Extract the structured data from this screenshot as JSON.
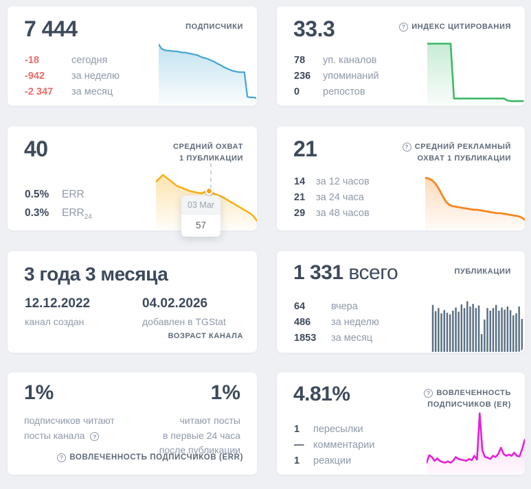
{
  "colors": {
    "negative": "#ee6a6a",
    "text_dark": "#3d4a5b",
    "label_gray": "#8e99a8"
  },
  "cards": {
    "subscribers": {
      "title": "ПОДПИСЧИКИ",
      "value": "7 444",
      "stats": [
        {
          "value": "-18",
          "label": "сегодня"
        },
        {
          "value": "-942",
          "label": "за неделю"
        },
        {
          "value": "-2 347",
          "label": "за месяц"
        }
      ]
    },
    "citation": {
      "title": "ИНДЕКС ЦИТИРОВАНИЯ",
      "value": "33.3",
      "stats": [
        {
          "value": "78",
          "label": "уп. каналов"
        },
        {
          "value": "236",
          "label": "упоминаний"
        },
        {
          "value": "0",
          "label": "репостов"
        }
      ]
    },
    "avg_reach": {
      "title_line1": "СРЕДНИЙ ОХВАТ",
      "title_line2": "1 ПУБЛИКАЦИИ",
      "value": "40",
      "stats": [
        {
          "value": "0.5%",
          "label": "ERR",
          "label_sub": ""
        },
        {
          "value": "0.3%",
          "label": "ERR",
          "label_sub": "24"
        }
      ],
      "tooltip": {
        "date": "03 Mar",
        "value": "57"
      }
    },
    "ad_reach": {
      "title_line1": "СРЕДНИЙ РЕКЛАМНЫЙ",
      "title_line2": "ОХВАТ 1 ПУБЛИКАЦИИ",
      "value": "21",
      "stats": [
        {
          "value": "14",
          "label": "за 12 часов"
        },
        {
          "value": "21",
          "label": "за 24 часа"
        },
        {
          "value": "29",
          "label": "за 48 часов"
        }
      ]
    },
    "age": {
      "value": "3 года 3 месяца",
      "created_date": "12.12.2022",
      "created_label": "канал создан",
      "added_date": "04.02.2026",
      "added_label": "добавлен в TGStat",
      "footer": "ВОЗРАСТ КАНАЛА"
    },
    "publications": {
      "title": "ПУБЛИКАЦИИ",
      "value": "1 331",
      "value_suffix": " всего",
      "stats": [
        {
          "value": "64",
          "label": "вчера"
        },
        {
          "value": "486",
          "label": "за неделю"
        },
        {
          "value": "1853",
          "label": "за месяц"
        }
      ]
    },
    "err": {
      "left_value": "1%",
      "left_label_line1": "подписчиков читают",
      "left_label_line2": "посты канала",
      "right_value": "1%",
      "right_label_line1": "читают посты",
      "right_label_line2": "в первые 24 часа",
      "right_label_line3": "после публикации",
      "footer": "ВОВЛЕЧЕННОСТЬ ПОДПИСЧИКОВ (ERR)"
    },
    "er": {
      "title_line1": "ВОВЛЕЧЕННОСТЬ",
      "title_line2": "ПОДПИСЧИКОВ (ER)",
      "value": "4.81%",
      "stats": [
        {
          "value": "1",
          "label": "пересылки"
        },
        {
          "value": "—",
          "label": "комментарии"
        },
        {
          "value": "1",
          "label": "реакции"
        }
      ]
    }
  },
  "chart_data": {
    "subscribers_trend": {
      "type": "area",
      "color": "#41a5d1",
      "fill_opacity": 0.32,
      "stroke_width": 2.2,
      "values": [
        96,
        89,
        87,
        86,
        86,
        85,
        85,
        84,
        83,
        83,
        82,
        81,
        80,
        79,
        77,
        75,
        74,
        72,
        70,
        68,
        65,
        63,
        60,
        58,
        56,
        54,
        53,
        52,
        52,
        52,
        13,
        12,
        12,
        11
      ]
    },
    "citation_trend": {
      "type": "area",
      "color": "#3cb966",
      "fill_opacity": 0.28,
      "stroke_width": 2.6,
      "values": [
        96,
        96,
        96,
        96,
        96,
        96,
        96,
        96,
        10,
        10,
        10,
        10,
        10,
        10,
        10,
        10,
        10,
        10,
        10,
        10,
        10,
        10,
        10,
        10,
        7,
        6,
        6,
        6,
        6,
        6
      ]
    },
    "avg_reach_trend": {
      "type": "area",
      "color": "#f8b119",
      "fill_opacity": 0.34,
      "stroke_width": 2.6,
      "values": [
        70,
        75,
        80,
        76,
        72,
        68,
        64,
        62,
        60,
        58,
        56,
        55,
        54,
        53,
        55,
        58,
        54,
        52,
        50,
        48,
        45,
        42,
        39,
        36,
        33,
        30,
        27,
        24,
        20,
        13
      ]
    },
    "ad_reach_trend": {
      "type": "area",
      "color": "#f5861f",
      "fill_opacity": 0.3,
      "stroke_width": 2.8,
      "values": [
        88,
        87,
        84,
        78,
        69,
        58,
        48,
        42,
        40,
        39,
        38,
        37,
        36,
        35,
        34,
        34,
        33,
        32,
        31,
        30,
        29,
        28,
        28,
        27,
        26,
        25,
        24,
        23,
        21,
        17
      ]
    },
    "publications_daily": {
      "type": "bar",
      "color": "#5b7083",
      "values": [
        90,
        78,
        84,
        74,
        80,
        75,
        72,
        79,
        85,
        77,
        91,
        84,
        97,
        87,
        92,
        84,
        89,
        34,
        62,
        84,
        79,
        84,
        90,
        79,
        85,
        81,
        87,
        80,
        70,
        74,
        87,
        63
      ]
    },
    "er_trend": {
      "type": "area",
      "color": "#e41fd7",
      "fill_opacity": 0.22,
      "stroke_width": 2.6,
      "values": [
        18,
        30,
        27,
        21,
        25,
        21,
        19,
        18,
        20,
        18,
        21,
        27,
        24,
        23,
        22,
        21,
        24,
        22,
        29,
        23,
        97,
        38,
        27,
        26,
        24,
        29,
        27,
        32,
        42,
        32,
        29,
        31,
        29,
        34,
        29,
        28,
        40,
        55
      ]
    }
  }
}
